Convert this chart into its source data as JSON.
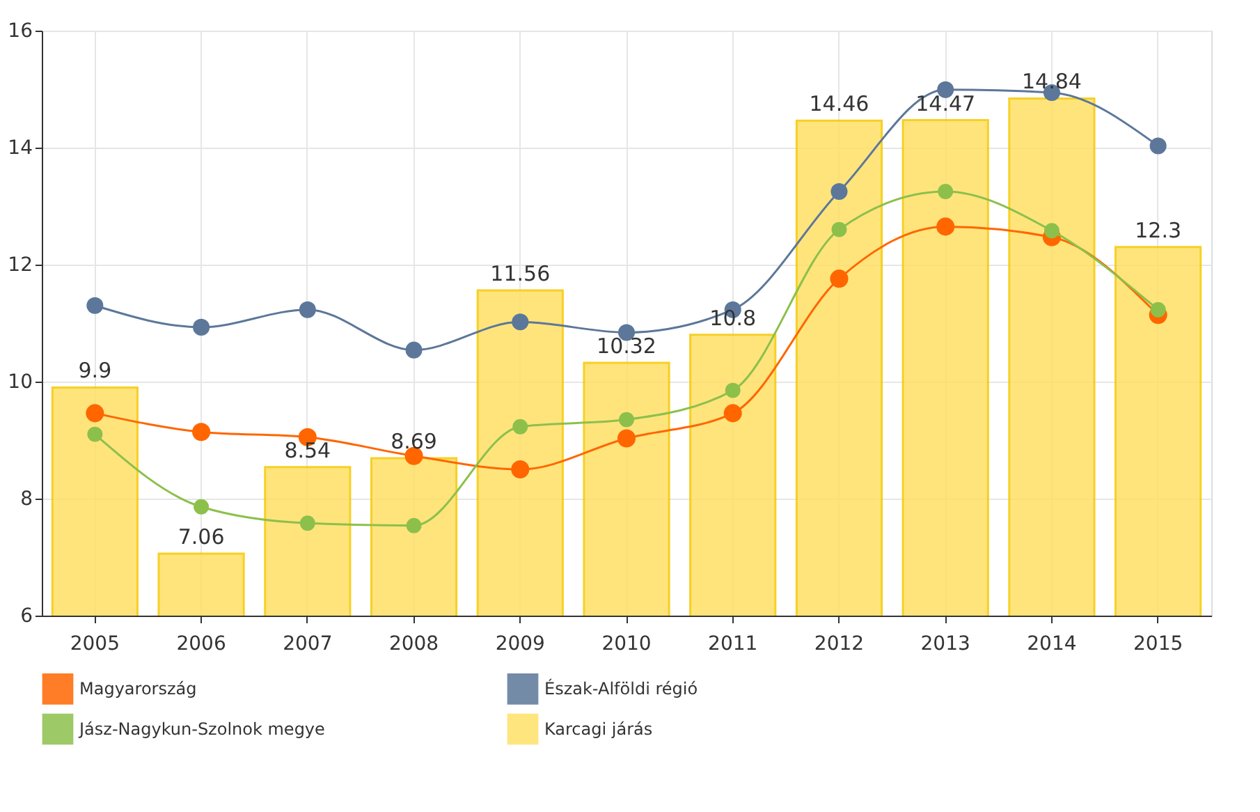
{
  "chart_data": {
    "type": "line",
    "categories": [
      "2005",
      "2006",
      "2007",
      "2008",
      "2009",
      "2010",
      "2011",
      "2012",
      "2013",
      "2014",
      "2015"
    ],
    "series": [
      {
        "name": "Magyarország",
        "color": "#ff6600",
        "values": [
          9.46,
          9.14,
          9.05,
          8.73,
          8.5,
          9.03,
          9.46,
          11.76,
          12.65,
          12.47,
          11.14
        ]
      },
      {
        "name": "Észak-Alföldi régió",
        "color": "#5c7799",
        "values": [
          11.3,
          10.93,
          11.23,
          10.54,
          11.02,
          10.84,
          11.23,
          13.25,
          14.99,
          14.94,
          14.03
        ]
      },
      {
        "name": "Jász-Nagykun-Szolnok megye",
        "color": "#8cc04b",
        "values": [
          9.1,
          7.86,
          7.58,
          7.54,
          9.23,
          9.35,
          9.85,
          12.6,
          13.25,
          12.58,
          11.23
        ]
      },
      {
        "name": "Karcagi járás",
        "type": "bar",
        "color": "#ffe066",
        "values": [
          9.9,
          7.06,
          8.54,
          8.69,
          11.56,
          10.32,
          10.8,
          14.46,
          14.47,
          14.84,
          12.3
        ],
        "value_labels": [
          "9.9",
          "7.06",
          "8.54",
          "8.69",
          "11.56",
          "10.32",
          "10.8",
          "14.46",
          "14.47",
          "14.84",
          "12.3"
        ]
      }
    ],
    "ylim": [
      6,
      16
    ],
    "yticks": [
      6,
      8,
      10,
      12,
      14,
      16
    ],
    "grid": true,
    "legend": "bottom",
    "marker": "circle",
    "line_style": "solid"
  }
}
